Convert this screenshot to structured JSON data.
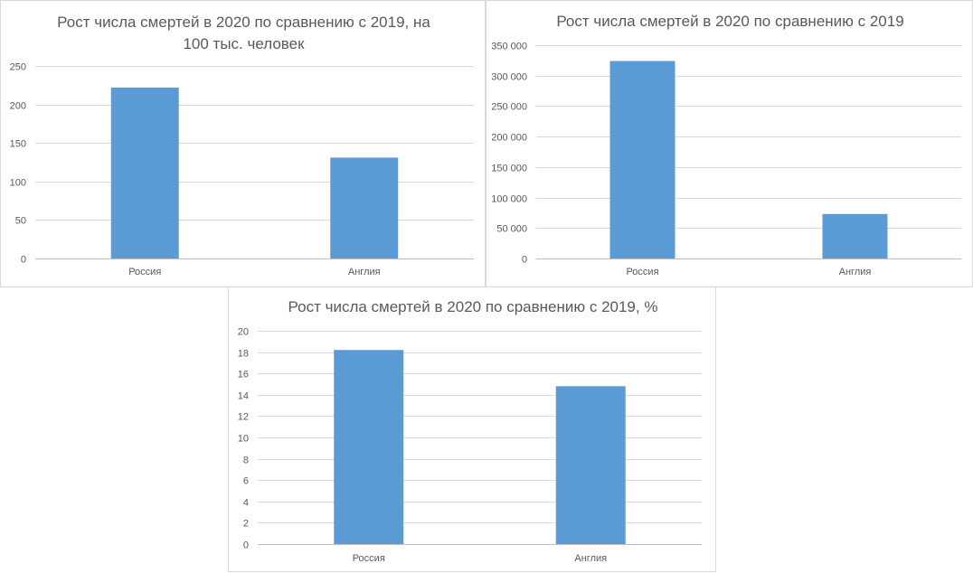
{
  "chart_data": [
    {
      "type": "bar",
      "title_lines": [
        "Рост числа смертей в 2020 по сравнению с 2019, на",
        "100 тыс. человек"
      ],
      "categories": [
        "Россия",
        "Англия"
      ],
      "values": [
        222,
        131
      ],
      "ylim": [
        0,
        250
      ],
      "yticks": [
        0,
        50,
        100,
        150,
        200,
        250
      ],
      "ytick_labels": [
        "0",
        "50",
        "100",
        "150",
        "200",
        "250"
      ],
      "grid": true,
      "color": "#5B9BD5"
    },
    {
      "type": "bar",
      "title_lines": [
        "Рост числа смертей в 2020 по сравнению с 2019"
      ],
      "categories": [
        "Россия",
        "Англия"
      ],
      "values": [
        324000,
        73000
      ],
      "ylim": [
        0,
        350000
      ],
      "yticks": [
        0,
        50000,
        100000,
        150000,
        200000,
        250000,
        300000,
        350000
      ],
      "ytick_labels": [
        "0",
        "50 000",
        "100 000",
        "150 000",
        "200 000",
        "250 000",
        "300 000",
        "350 000"
      ],
      "grid": true,
      "color": "#5B9BD5"
    },
    {
      "type": "bar",
      "title_lines": [
        "Рост числа смертей в 2020 по сравнению с 2019, %"
      ],
      "categories": [
        "Россия",
        "Англия"
      ],
      "values": [
        18.2,
        14.8
      ],
      "ylim": [
        0,
        20
      ],
      "yticks": [
        0,
        2,
        4,
        6,
        8,
        10,
        12,
        14,
        16,
        18,
        20
      ],
      "ytick_labels": [
        "0",
        "2",
        "4",
        "6",
        "8",
        "10",
        "12",
        "14",
        "16",
        "18",
        "20"
      ],
      "grid": true,
      "color": "#5B9BD5"
    }
  ]
}
